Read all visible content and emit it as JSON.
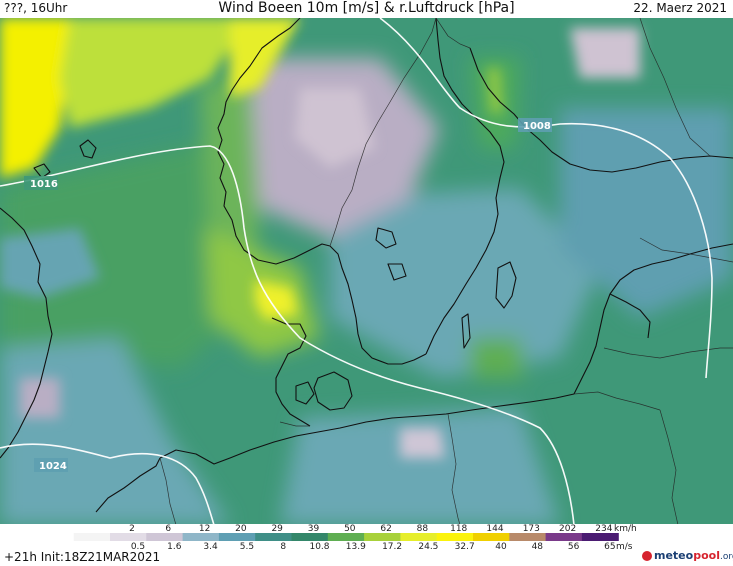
{
  "header": {
    "left": "???, 16Uhr",
    "title": "Wind Boeen 10m [m/s] & r.Luftdruck [hPa]",
    "date": "22. Maerz 2021"
  },
  "isobars": [
    {
      "label": "1016"
    },
    {
      "label": "1008"
    },
    {
      "label": "1024"
    }
  ],
  "legend": {
    "kmh_labels": [
      "2",
      "6",
      "12",
      "20",
      "29",
      "39",
      "50",
      "62",
      "88",
      "118",
      "144",
      "173",
      "202",
      "234"
    ],
    "kmh_unit": "km/h",
    "ms_labels": [
      "0.5",
      "1.6",
      "3.4",
      "5.5",
      "8",
      "10.8",
      "13.9",
      "17.2",
      "24.5",
      "32.7",
      "40",
      "48",
      "56",
      "65"
    ],
    "ms_unit": "m/s",
    "colors": [
      "#f4f4f4",
      "#e2dce6",
      "#cfc6d6",
      "#8fb6c8",
      "#5f9fb3",
      "#3f8f87",
      "#34876a",
      "#5fae52",
      "#a8d13a",
      "#e6ee2b",
      "#fbf30c",
      "#f0d000",
      "#b88a6a",
      "#7a3a8a",
      "#4b1c72"
    ]
  },
  "footer": {
    "left": "+21h Init:18Z21MAR2021"
  },
  "brand": {
    "name_part1": "meteo",
    "name_part2": "pool",
    "name_part3": ".org"
  }
}
